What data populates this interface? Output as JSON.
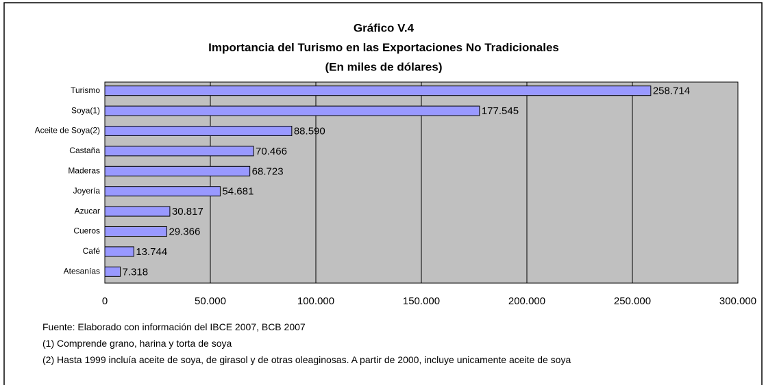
{
  "chart_data": {
    "type": "hbar",
    "title": [
      "Gráfico V.4",
      "Importancia del Turismo en las Exportaciones No Tradicionales",
      "(En miles de dólares)"
    ],
    "categories": [
      "Turismo",
      "Soya(1)",
      "Aceite de Soya(2)",
      "Castaña",
      "Maderas",
      "Joyería",
      "Azucar",
      "Cueros",
      "Café",
      "Atesanías"
    ],
    "values": [
      258714,
      177545,
      88590,
      70466,
      68723,
      54681,
      30817,
      29366,
      13744,
      7318
    ],
    "value_labels": [
      "258.714",
      "177.545",
      "88.590",
      "70.466",
      "68.723",
      "54.681",
      "30.817",
      "29.366",
      "13.744",
      "7.318"
    ],
    "color": "#9999ff",
    "xlim": [
      0,
      300000
    ],
    "xticks": [
      0,
      {
        "value": 50000,
        "label": "50.000"
      },
      {
        "value": 100000,
        "label": "100.000"
      },
      {
        "value": 150000,
        "label": "150.000"
      },
      {
        "value": 200000,
        "label": "200.000"
      },
      {
        "value": 250000,
        "label": "250.000"
      },
      {
        "value": 300000,
        "label": "300.000"
      }
    ],
    "grid": true,
    "notes": [
      "Fuente: Elaborado con información del IBCE 2007, BCB 2007",
      "(1) Comprende grano, harina y torta de soya",
      "(2) Hasta 1999 incluía aceite de soya, de girasol y de otras oleaginosas. A partir de 2000, incluye unicamente aceite de soya"
    ]
  }
}
